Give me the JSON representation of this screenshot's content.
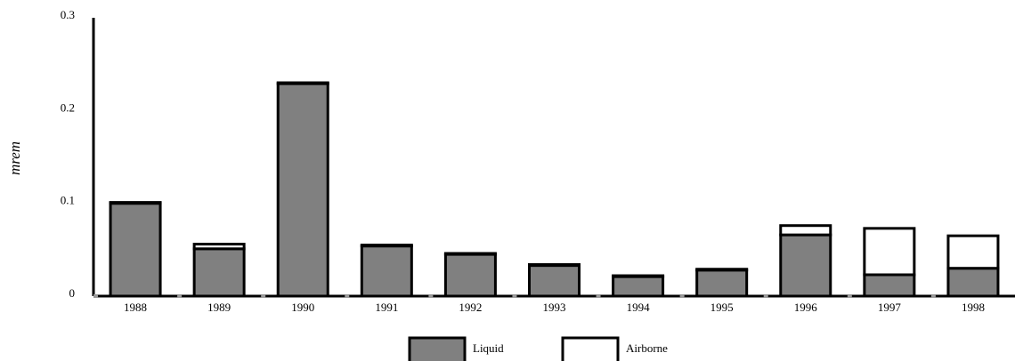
{
  "chart_data": {
    "type": "stacked_bar",
    "y_label": "mrem",
    "categories": [
      "1988",
      "1989",
      "1990",
      "1991",
      "1992",
      "1993",
      "1994",
      "1995",
      "1996",
      "1997",
      "1998"
    ],
    "series": [
      {
        "name": "Liquid",
        "color": "#808080",
        "values": [
          0.1,
          0.051,
          0.229,
          0.054,
          0.045,
          0.033,
          0.021,
          0.028,
          0.066,
          0.023,
          0.03
        ]
      },
      {
        "name": "Airborne",
        "color": "#ffffff",
        "values": [
          0.001,
          0.005,
          0.001,
          0.001,
          0.001,
          0.001,
          0.001,
          0.001,
          0.01,
          0.05,
          0.035
        ]
      }
    ],
    "ylim": [
      0,
      0.3
    ],
    "yticks": [
      0,
      0.1,
      0.2,
      0.3
    ],
    "grid": false
  }
}
